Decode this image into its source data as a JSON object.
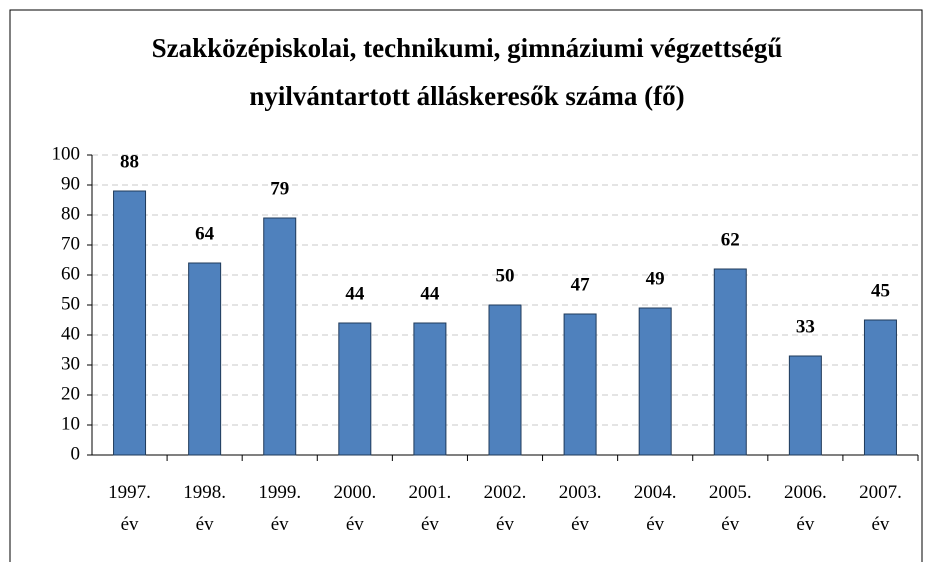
{
  "chart_data": {
    "type": "bar",
    "title": "Szakközépiskolai, technikumi, gimnáziumi végzettségű nyilvántartott álláskeresők száma (fő)",
    "categories": [
      "1997. év",
      "1998. év",
      "1999. év",
      "2000. év",
      "2001. év",
      "2002. év",
      "2003. év",
      "2004. év",
      "2005. év",
      "2006. év",
      "2007. év"
    ],
    "values": [
      88,
      64,
      79,
      44,
      44,
      50,
      47,
      49,
      62,
      33,
      45
    ],
    "color": "#4f81bd",
    "ylim": [
      0,
      100
    ],
    "yticks": [
      0,
      10,
      20,
      30,
      40,
      50,
      60,
      70,
      80,
      90,
      100
    ],
    "grid": true
  }
}
